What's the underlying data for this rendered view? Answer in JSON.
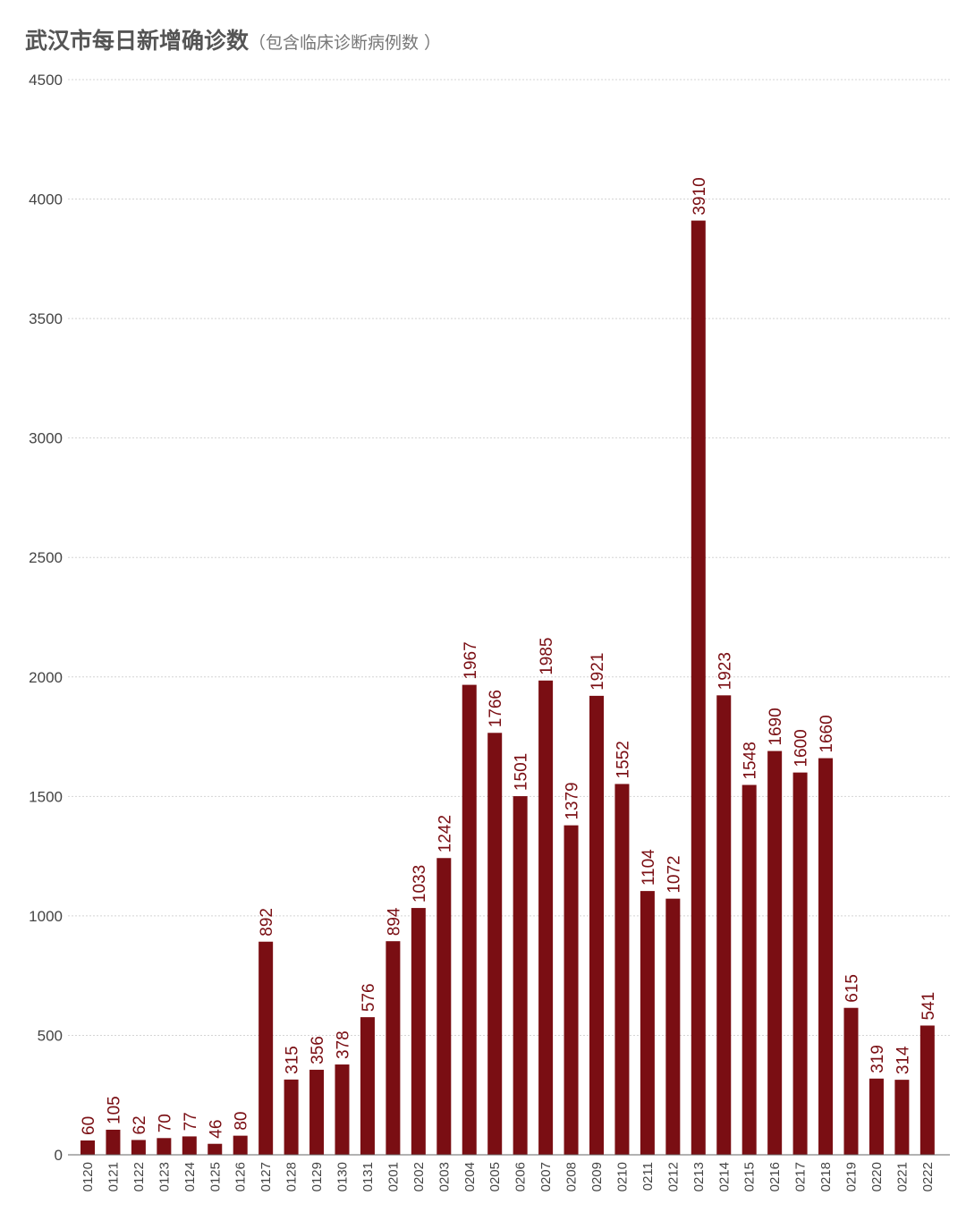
{
  "title": "武汉市每日新增确诊数",
  "subtitle": "（包含临床诊断病例数 ）",
  "colors": {
    "bar": "#7a0e13",
    "label": "#7a0e13",
    "grid": "#d4d4d4",
    "axis": "#666666"
  },
  "chart_data": {
    "type": "bar",
    "title": "武汉市每日新增确诊数",
    "subtitle": "（包含临床诊断病例数 ）",
    "xlabel": "",
    "ylabel": "",
    "ylim": [
      0,
      4500
    ],
    "yticks": [
      0,
      500,
      1000,
      1500,
      2000,
      2500,
      3000,
      3500,
      4000,
      4500
    ],
    "grid": true,
    "categories": [
      "0120",
      "0121",
      "0122",
      "0123",
      "0124",
      "0125",
      "0126",
      "0127",
      "0128",
      "0129",
      "0130",
      "0131",
      "0201",
      "0202",
      "0203",
      "0204",
      "0205",
      "0206",
      "0207",
      "0208",
      "0209",
      "0210",
      "0211",
      "0212",
      "0213",
      "0214",
      "0215",
      "0216",
      "0217",
      "0218",
      "0219",
      "0220",
      "0221",
      "0222"
    ],
    "values": [
      60,
      105,
      62,
      70,
      77,
      46,
      80,
      892,
      315,
      356,
      378,
      576,
      894,
      1033,
      1242,
      1967,
      1766,
      1501,
      1985,
      1379,
      1921,
      1552,
      1104,
      1072,
      3910,
      1923,
      1548,
      1690,
      1600,
      1660,
      615,
      319,
      314,
      541
    ]
  }
}
